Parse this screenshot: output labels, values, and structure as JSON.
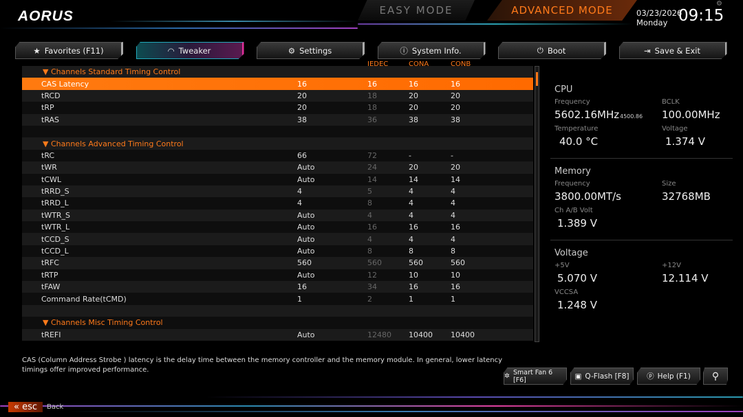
{
  "header": {
    "logo": "AORUS",
    "easy_mode": "EASY MODE",
    "advanced_mode": "ADVANCED MODE",
    "date": "03/23/2026",
    "day": "Monday",
    "time": "09:15"
  },
  "tabs": [
    {
      "label": "Favorites (F11)",
      "icon": "folder-star-icon"
    },
    {
      "label": "Tweaker",
      "icon": "speedometer-icon",
      "active": true
    },
    {
      "label": "Settings",
      "icon": "gear-icon"
    },
    {
      "label": "System Info.",
      "icon": "info-icon"
    },
    {
      "label": "Boot",
      "icon": "power-icon"
    },
    {
      "label": "Save & Exit",
      "icon": "exit-icon"
    }
  ],
  "columns": [
    "JEDEC",
    "CONA",
    "CONB"
  ],
  "rows": [
    {
      "type": "header",
      "name": "Channels Standard Timing Control"
    },
    {
      "name": "CAS Latency",
      "value": "16",
      "jedec": "16",
      "cona": "16",
      "conb": "16",
      "selected": true
    },
    {
      "name": "tRCD",
      "value": "20",
      "jedec": "18",
      "cona": "20",
      "conb": "20"
    },
    {
      "name": "tRP",
      "value": "20",
      "jedec": "18",
      "cona": "20",
      "conb": "20"
    },
    {
      "name": "tRAS",
      "value": "38",
      "jedec": "36",
      "cona": "38",
      "conb": "38"
    },
    {
      "type": "blank"
    },
    {
      "type": "header",
      "name": "Channels Advanced Timing Control"
    },
    {
      "name": "tRC",
      "value": "66",
      "jedec": "72",
      "cona": "-",
      "conb": "-"
    },
    {
      "name": "tWR",
      "value": "Auto",
      "jedec": "24",
      "cona": "20",
      "conb": "20"
    },
    {
      "name": "tCWL",
      "value": "Auto",
      "jedec": "14",
      "cona": "14",
      "conb": "14"
    },
    {
      "name": "tRRD_S",
      "value": "4",
      "jedec": "5",
      "cona": "4",
      "conb": "4"
    },
    {
      "name": "tRRD_L",
      "value": "4",
      "jedec": "8",
      "cona": "4",
      "conb": "4"
    },
    {
      "name": "tWTR_S",
      "value": "Auto",
      "jedec": "4",
      "cona": "4",
      "conb": "4"
    },
    {
      "name": "tWTR_L",
      "value": "Auto",
      "jedec": "16",
      "cona": "16",
      "conb": "16"
    },
    {
      "name": "tCCD_S",
      "value": "Auto",
      "jedec": "4",
      "cona": "4",
      "conb": "4"
    },
    {
      "name": "tCCD_L",
      "value": "Auto",
      "jedec": "8",
      "cona": "8",
      "conb": "8"
    },
    {
      "name": "tRFC",
      "value": "560",
      "jedec": "560",
      "cona": "560",
      "conb": "560"
    },
    {
      "name": "tRTP",
      "value": "Auto",
      "jedec": "12",
      "cona": "10",
      "conb": "10"
    },
    {
      "name": "tFAW",
      "value": "16",
      "jedec": "34",
      "cona": "16",
      "conb": "16"
    },
    {
      "name": "Command Rate(tCMD)",
      "value": "1",
      "jedec": "2",
      "cona": "1",
      "conb": "1"
    },
    {
      "type": "blank"
    },
    {
      "type": "header",
      "name": "Channels Misc Timing Control"
    },
    {
      "name": "tREFI",
      "value": "Auto",
      "jedec": "12480",
      "cona": "10400",
      "conb": "10400"
    }
  ],
  "side": {
    "cpu": {
      "title": "CPU",
      "freq_label": "Frequency",
      "freq": "5602.16MHz",
      "freq_sub": "4500.86",
      "bclk_label": "BCLK",
      "bclk": "100.00MHz",
      "temp_label": "Temperature",
      "temp": "40.0 °C",
      "volt_label": "Voltage",
      "volt": "1.374 V"
    },
    "memory": {
      "title": "Memory",
      "freq_label": "Frequency",
      "freq": "3800.00MT/s",
      "size_label": "Size",
      "size": "32768MB",
      "volt_label": "Ch A/B Volt",
      "volt": "1.389 V"
    },
    "voltage": {
      "title": "Voltage",
      "v5_label": "+5V",
      "v5": "5.070 V",
      "v12_label": "+12V",
      "v12": "12.114 V",
      "vccsa_label": "VCCSA",
      "vccsa": "1.248 V"
    }
  },
  "help_text": "CAS (Column Address Strobe ) latency is the delay time between the memory controller and the memory module. In general, lower latency timings offer improved performance.",
  "buttons": {
    "smartfan": "Smart Fan 6 [F6]",
    "qflash": "Q-Flash [F8]",
    "help": "Help (F1)"
  },
  "footer": {
    "esc": "esc",
    "back": "Back"
  },
  "colors": {
    "accent": "#ff7a1a",
    "teal": "#22aabb",
    "magenta": "#e2309a"
  }
}
